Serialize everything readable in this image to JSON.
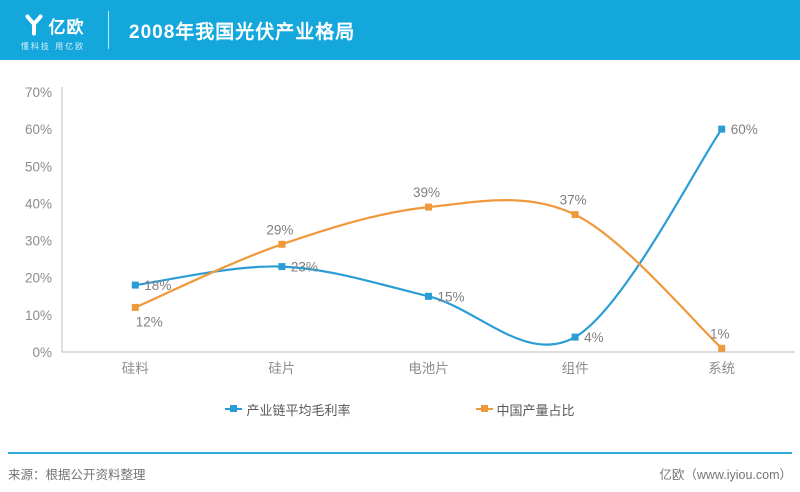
{
  "header": {
    "logo_name": "亿欧",
    "logo_tagline": "懂科技 用亿欧",
    "title": "2008年我国光伏产业格局"
  },
  "footer": {
    "source": "来源：根据公开资料整理",
    "brand": "亿欧（www.iyiou.com）"
  },
  "colors": {
    "header_bg": "#14a7dc",
    "axis_line": "#c9c9c9",
    "tick_text": "#8c8c8c",
    "data_label": "#7f7f7f",
    "footer_line": "#2fa9da"
  },
  "chart_data": {
    "type": "line",
    "smooth": true,
    "grid": false,
    "legend_position": "bottom",
    "categories": [
      "硅料",
      "硅片",
      "电池片",
      "组件",
      "系统"
    ],
    "series": [
      {
        "name": "产业链平均毛利率",
        "color": "#2b9dd6",
        "values": [
          18,
          23,
          15,
          4,
          60
        ],
        "labels": [
          "18%",
          "23%",
          "15%",
          "4%",
          "60%"
        ],
        "label_placement": [
          "right",
          "right",
          "right",
          "right",
          "right"
        ]
      },
      {
        "name": "中国产量占比",
        "color": "#f0993c",
        "values": [
          12,
          29,
          39,
          37,
          1
        ],
        "labels": [
          "12%",
          "29%",
          "39%",
          "37%",
          "1%"
        ],
        "label_placement": [
          "below",
          "above",
          "above",
          "above",
          "above"
        ]
      }
    ],
    "y_ticks": [
      "0%",
      "10%",
      "20%",
      "30%",
      "40%",
      "50%",
      "60%",
      "70%"
    ],
    "ylim": [
      0,
      70
    ]
  }
}
